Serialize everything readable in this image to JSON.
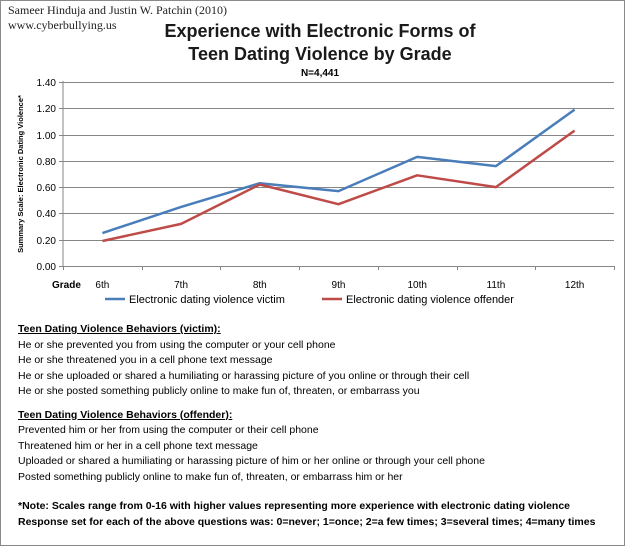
{
  "credit": {
    "line1": "Sameer Hinduja and Justin W. Patchin (2010)",
    "line2": "www.cyberbullying.us"
  },
  "chart_data": {
    "type": "line",
    "title_line1": "Experience with Electronic Forms of",
    "title_line2": "Teen Dating Violence by Grade",
    "subtitle": "N=4,441",
    "xlabel": "Grade",
    "ylabel": "Summary Scale: Electronic Dating Violence*",
    "categories": [
      "6th",
      "7th",
      "8th",
      "9th",
      "10th",
      "11th",
      "12th"
    ],
    "ylim": [
      0,
      1.4
    ],
    "yticks": [
      "0.00",
      "0.20",
      "0.40",
      "0.60",
      "0.80",
      "1.00",
      "1.20",
      "1.40"
    ],
    "legend_position": "bottom",
    "series": [
      {
        "name": "Electronic dating violence victim",
        "color": "#4a7ebb",
        "values": [
          0.25,
          0.45,
          0.63,
          0.57,
          0.83,
          0.76,
          1.19
        ]
      },
      {
        "name": "Electronic dating violence offender",
        "color": "#be4b48",
        "values": [
          0.19,
          0.32,
          0.62,
          0.47,
          0.69,
          0.6,
          1.03
        ]
      }
    ]
  },
  "notes": {
    "victim_header": "Teen Dating Violence Behaviors (victim):",
    "victim_items": [
      "He or she prevented you from using the computer or your cell phone",
      "He or she threatened you in a cell phone text message",
      "He or she uploaded or shared a humiliating or harassing picture of you online or through their cell",
      "He or she posted something publicly online to make fun of, threaten, or embarrass you"
    ],
    "offender_header": "Teen Dating Violence Behaviors (offender):",
    "offender_items": [
      "Prevented him or her from using the computer or their cell phone",
      "Threatened him or her in a cell phone text message",
      "Uploaded or shared a humiliating or harassing picture of him or her online or through your cell phone",
      "Posted something publicly online to make fun of, threaten, or embarrass him or her"
    ],
    "scale_note": "*Note: Scales range from 0-16 with higher values representing more experience with electronic dating violence",
    "response_note": "Response set for each of the above questions was: 0=never; 1=once; 2=a few times; 3=several times; 4=many times"
  }
}
